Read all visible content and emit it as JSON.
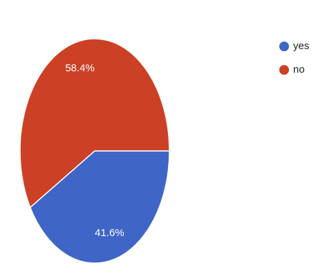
{
  "chart_data": {
    "type": "pie",
    "categories": [
      "yes",
      "no"
    ],
    "values": [
      41.6,
      58.4
    ],
    "value_labels": [
      "41.6%",
      "58.4%"
    ],
    "colors": [
      "#3f66c6",
      "#cc4125"
    ],
    "legend": "right"
  }
}
